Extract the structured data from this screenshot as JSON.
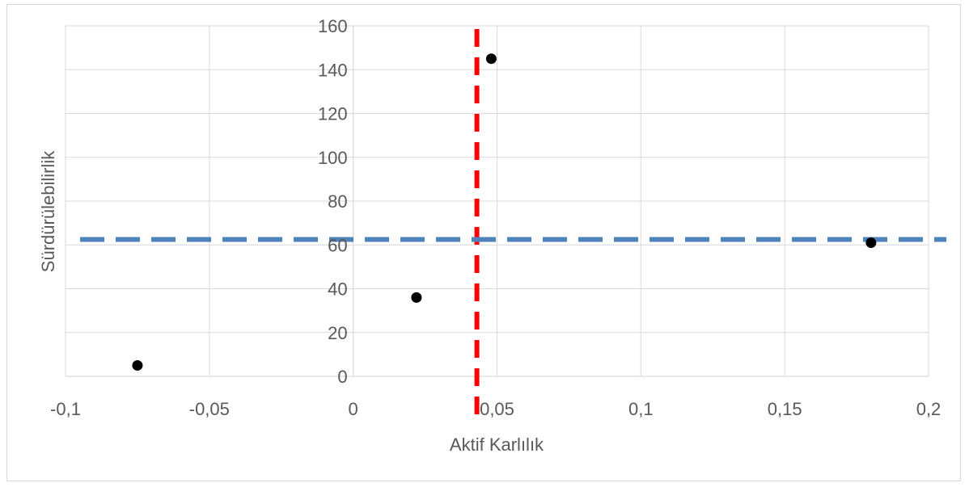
{
  "chart_data": {
    "type": "scatter",
    "title": "",
    "xlabel": "Aktif Karlılık",
    "ylabel": "Sürdürülebilirlik",
    "xlim": [
      -0.1,
      0.2
    ],
    "ylim": [
      0,
      160
    ],
    "x_ticks": [
      -0.1,
      -0.05,
      0,
      0.05,
      0.1,
      0.15,
      0.2
    ],
    "x_tick_labels": [
      "-0,1",
      "-0,05",
      "0",
      "0,05",
      "0,1",
      "0,15",
      "0,2"
    ],
    "y_ticks": [
      0,
      20,
      40,
      60,
      80,
      100,
      120,
      140,
      160
    ],
    "y_tick_labels": [
      "0",
      "20",
      "40",
      "60",
      "80",
      "100",
      "120",
      "140",
      "160"
    ],
    "grid": true,
    "legend": "none",
    "series": [
      {
        "points": [
          {
            "x": -0.075,
            "y": 5
          },
          {
            "x": 0.022,
            "y": 36
          },
          {
            "x": 0.048,
            "y": 145
          },
          {
            "x": 0.18,
            "y": 61
          }
        ],
        "color": "#000000"
      }
    ],
    "reference_lines": [
      {
        "orientation": "vertical",
        "x": 0.043,
        "color": "#ff0000",
        "style": "dashed"
      },
      {
        "orientation": "horizontal",
        "y": 62.5,
        "color": "#4f81bd",
        "style": "dashed"
      }
    ],
    "colors": {
      "gridline": "#d9d9d9",
      "axis": "#d9d9d9",
      "text": "#595959"
    }
  }
}
